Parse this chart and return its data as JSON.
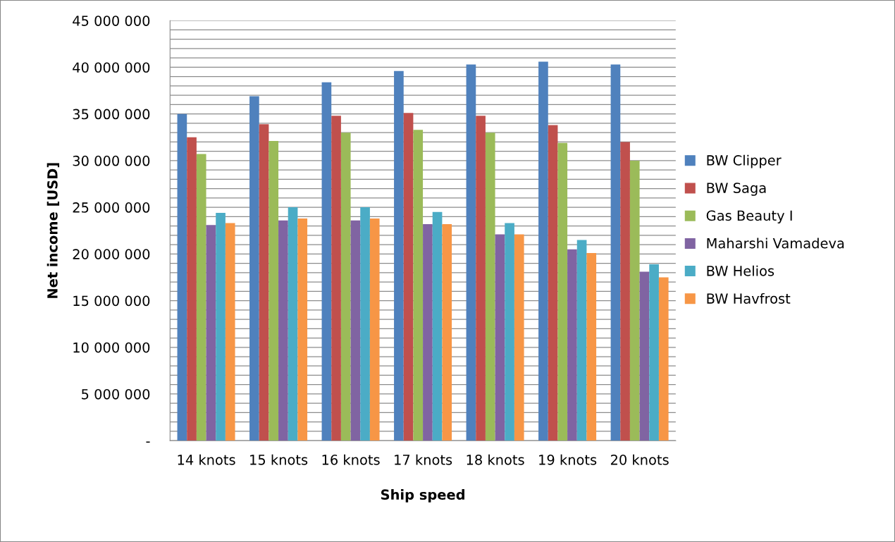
{
  "chart_data": {
    "type": "bar",
    "xlabel": "Ship speed",
    "ylabel": "Net income [USD]",
    "categories": [
      "14 knots",
      "15 knots",
      "16 knots",
      "17 knots",
      "18 knots",
      "19 knots",
      "20 knots"
    ],
    "series": [
      {
        "name": "BW Clipper",
        "color": "#4f81bd",
        "values": [
          35000000,
          36900000,
          38400000,
          39600000,
          40300000,
          40600000,
          40300000
        ]
      },
      {
        "name": "BW Saga",
        "color": "#c0504d",
        "values": [
          32500000,
          33900000,
          34800000,
          35100000,
          34800000,
          33800000,
          32000000
        ]
      },
      {
        "name": "Gas Beauty I",
        "color": "#9bbb59",
        "values": [
          30700000,
          32100000,
          33000000,
          33300000,
          33000000,
          31900000,
          30000000
        ]
      },
      {
        "name": "Maharshi Vamadeva",
        "color": "#8064a2",
        "values": [
          23100000,
          23600000,
          23600000,
          23200000,
          22100000,
          20500000,
          18100000
        ]
      },
      {
        "name": "BW Helios",
        "color": "#4bacc6",
        "values": [
          24400000,
          25000000,
          25000000,
          24500000,
          23300000,
          21500000,
          18900000
        ]
      },
      {
        "name": "BW Havfrost",
        "color": "#f79646",
        "values": [
          23300000,
          23800000,
          23800000,
          23200000,
          22100000,
          20100000,
          17500000
        ]
      }
    ],
    "ylim": [
      0,
      45000000
    ],
    "yticks": [
      {
        "value": 0,
        "label": "-"
      },
      {
        "value": 1000000,
        "label": null
      },
      {
        "value": 2000000,
        "label": null
      },
      {
        "value": 3000000,
        "label": null
      },
      {
        "value": 4000000,
        "label": null
      },
      {
        "value": 5000000,
        "label": "5 000 000"
      },
      {
        "value": 6000000,
        "label": null
      },
      {
        "value": 7000000,
        "label": null
      },
      {
        "value": 8000000,
        "label": null
      },
      {
        "value": 9000000,
        "label": null
      },
      {
        "value": 10000000,
        "label": "10 000 000"
      },
      {
        "value": 11000000,
        "label": null
      },
      {
        "value": 12000000,
        "label": null
      },
      {
        "value": 13000000,
        "label": null
      },
      {
        "value": 14000000,
        "label": null
      },
      {
        "value": 15000000,
        "label": "15 000 000"
      },
      {
        "value": 16000000,
        "label": null
      },
      {
        "value": 17000000,
        "label": null
      },
      {
        "value": 18000000,
        "label": null
      },
      {
        "value": 19000000,
        "label": null
      },
      {
        "value": 20000000,
        "label": "20 000 000"
      },
      {
        "value": 21000000,
        "label": null
      },
      {
        "value": 22000000,
        "label": null
      },
      {
        "value": 23000000,
        "label": null
      },
      {
        "value": 24000000,
        "label": null
      },
      {
        "value": 25000000,
        "label": "25 000 000"
      },
      {
        "value": 26000000,
        "label": null
      },
      {
        "value": 27000000,
        "label": null
      },
      {
        "value": 28000000,
        "label": null
      },
      {
        "value": 29000000,
        "label": null
      },
      {
        "value": 30000000,
        "label": "30 000 000"
      },
      {
        "value": 31000000,
        "label": null
      },
      {
        "value": 32000000,
        "label": null
      },
      {
        "value": 33000000,
        "label": null
      },
      {
        "value": 34000000,
        "label": null
      },
      {
        "value": 35000000,
        "label": "35 000 000"
      },
      {
        "value": 36000000,
        "label": null
      },
      {
        "value": 37000000,
        "label": null
      },
      {
        "value": 38000000,
        "label": null
      },
      {
        "value": 39000000,
        "label": null
      },
      {
        "value": 40000000,
        "label": "40 000 000"
      },
      {
        "value": 41000000,
        "label": null
      },
      {
        "value": 42000000,
        "label": null
      },
      {
        "value": 43000000,
        "label": null
      },
      {
        "value": 44000000,
        "label": null
      },
      {
        "value": 45000000,
        "label": "45 000 000"
      }
    ],
    "grid": "y",
    "legend": "right"
  }
}
